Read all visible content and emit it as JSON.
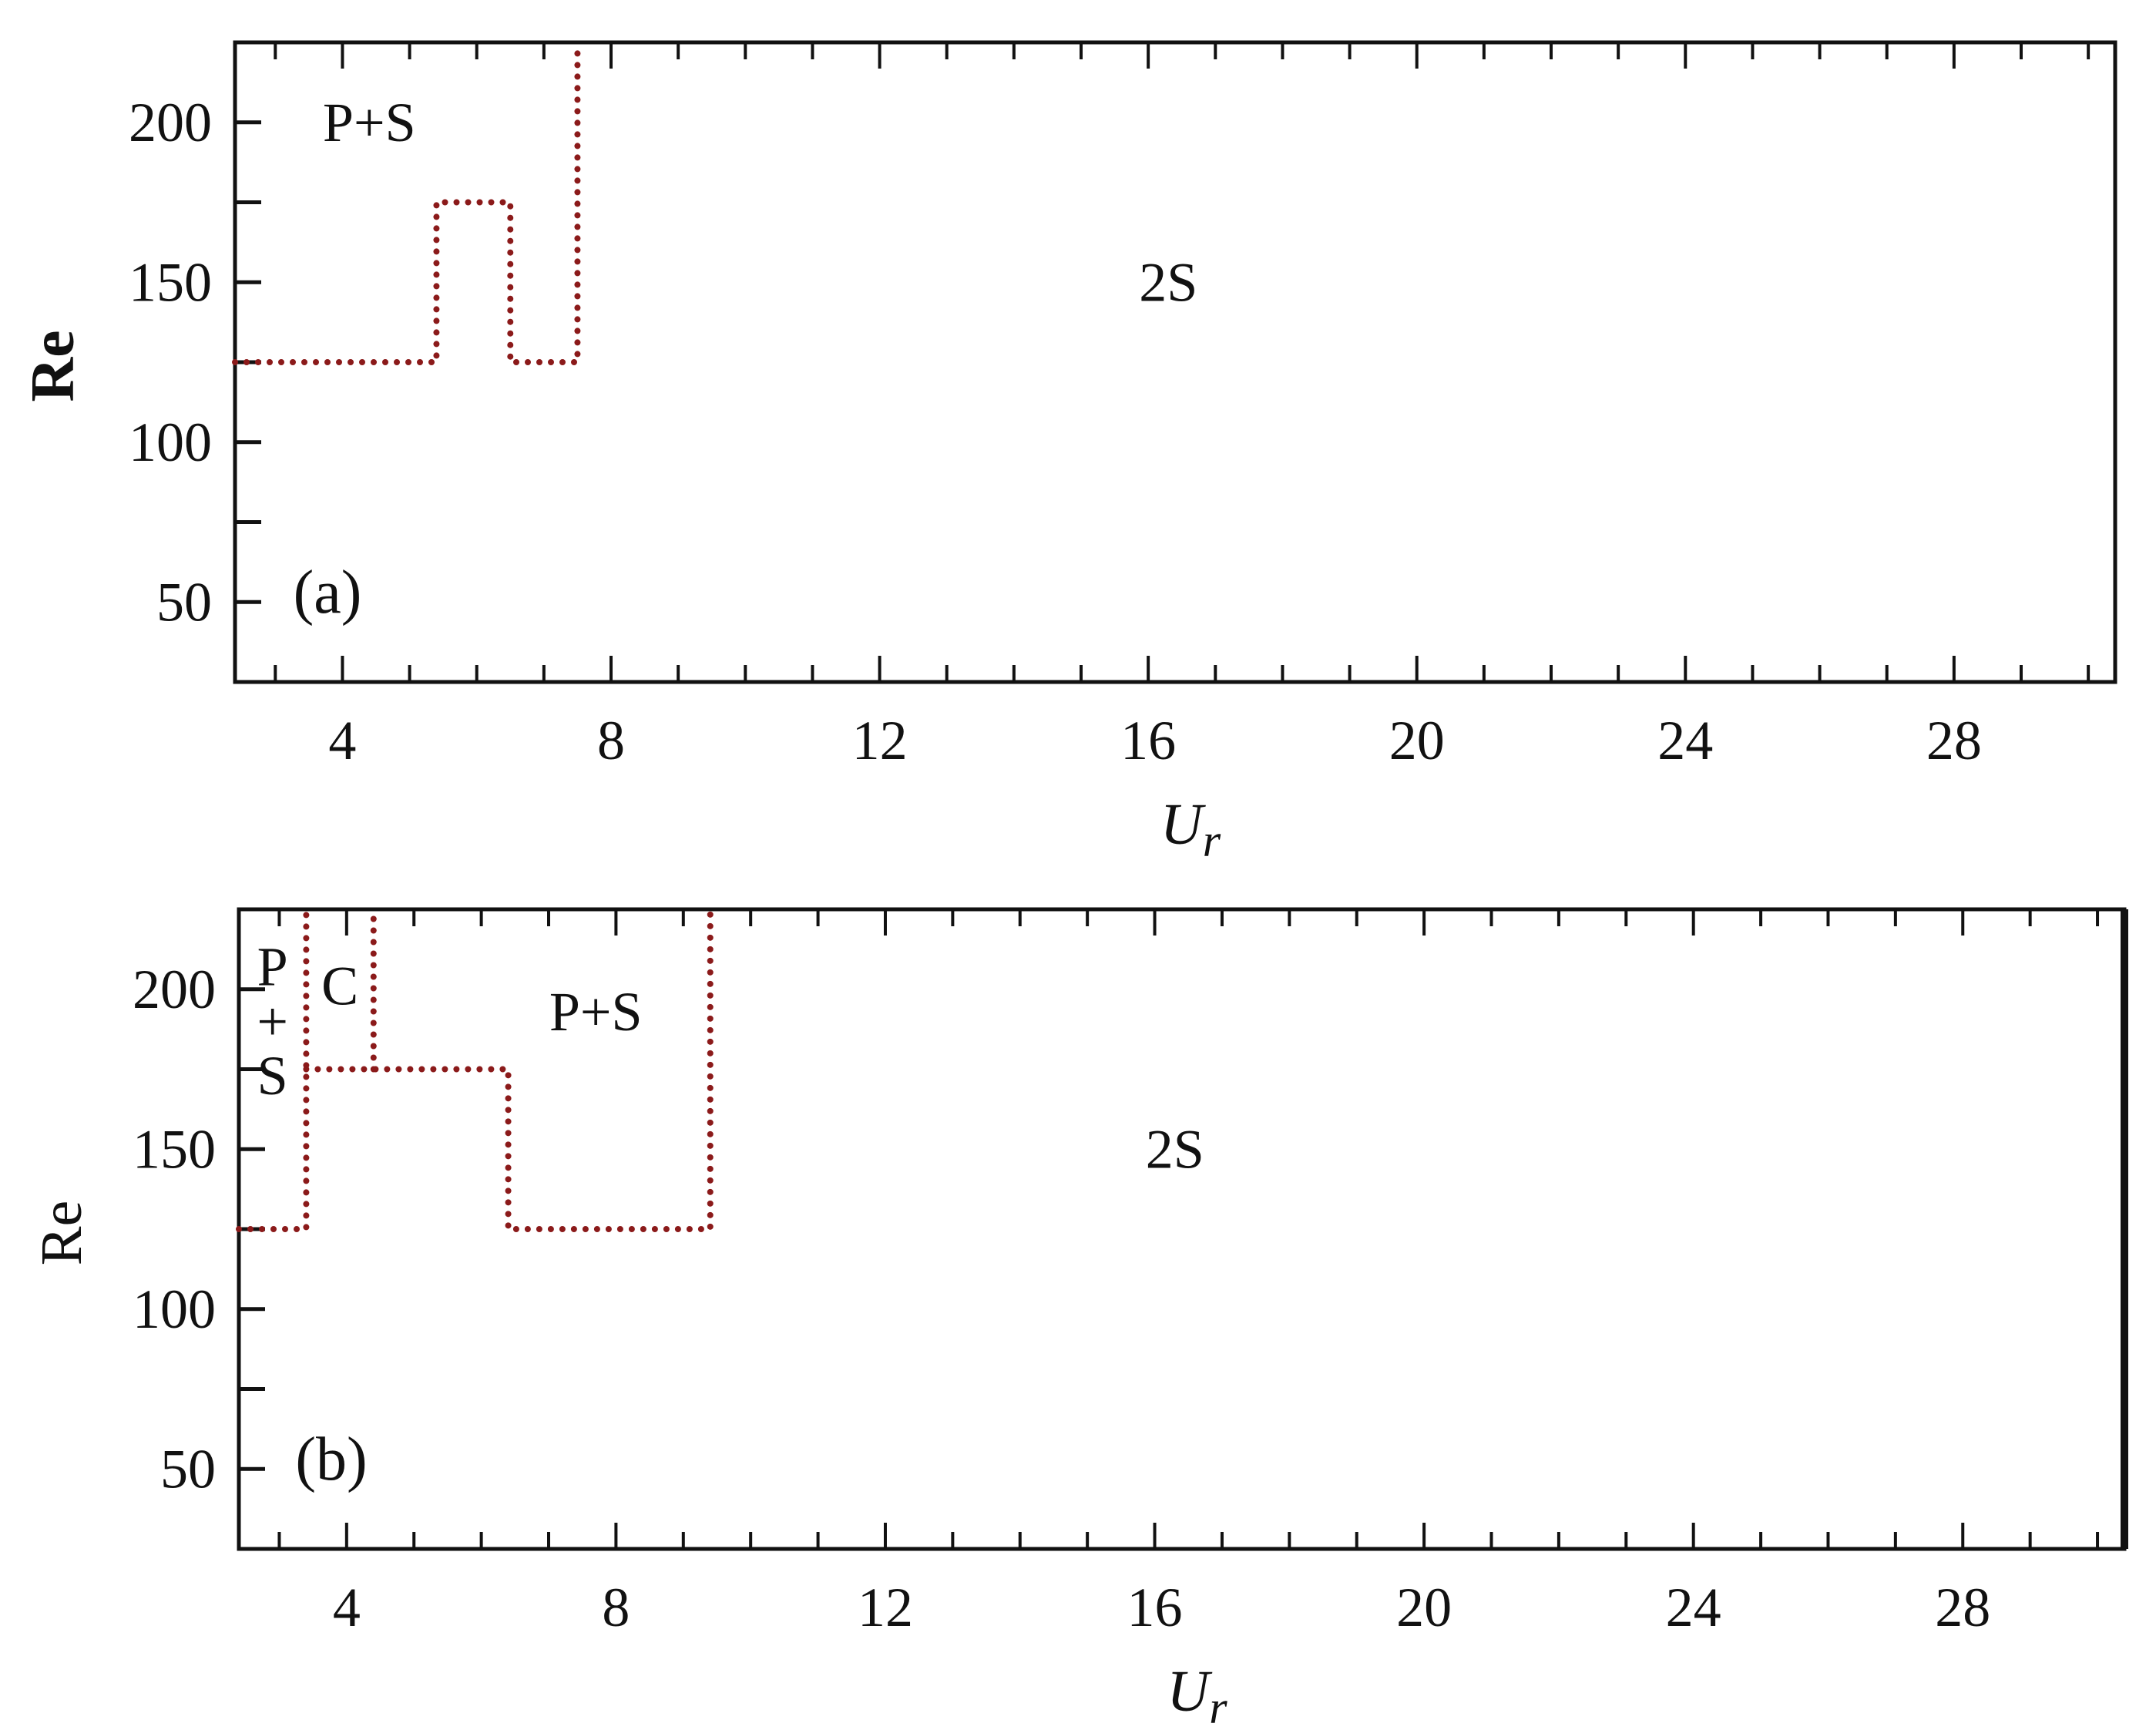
{
  "chart_data": [
    {
      "type": "line",
      "panel_label": "(a)",
      "xlabel_main": "U",
      "xlabel_sub": "r",
      "ylabel": "Re",
      "xlim": [
        2.4,
        30.4
      ],
      "ylim": [
        25,
        225
      ],
      "xticks": [
        "4",
        "8",
        "12",
        "16",
        "20",
        "24",
        "28"
      ],
      "yticks": [
        "50",
        "100",
        "150",
        "200"
      ],
      "xtick_values": [
        4,
        8,
        12,
        16,
        20,
        24,
        28
      ],
      "ytick_values": [
        50,
        100,
        150,
        200
      ],
      "x_minor_step": 1,
      "y_major_marks": [
        50,
        75,
        100,
        125,
        150,
        175,
        200,
        225
      ],
      "grid": false,
      "line_color": "#8b1a1a",
      "series": [
        {
          "style": "dotted",
          "x": [
            2.4,
            5.4,
            5.4,
            6.5,
            6.5,
            7.5,
            7.5
          ],
          "y": [
            125,
            125,
            175,
            175,
            125,
            125,
            225
          ]
        }
      ],
      "annotations": [
        {
          "text": "P+S",
          "x": 4.4,
          "y": 200
        },
        {
          "text": "2S",
          "x": 16.3,
          "y": 150
        }
      ]
    },
    {
      "type": "line",
      "panel_label": "(b)",
      "xlabel_main": "U",
      "xlabel_sub": "r",
      "ylabel": "Re",
      "xlim": [
        2.4,
        30.4
      ],
      "ylim": [
        25,
        225
      ],
      "xticks": [
        "4",
        "8",
        "12",
        "16",
        "20",
        "24",
        "28"
      ],
      "yticks": [
        "50",
        "100",
        "150",
        "200"
      ],
      "xtick_values": [
        4,
        8,
        12,
        16,
        20,
        24,
        28
      ],
      "ytick_values": [
        50,
        100,
        150,
        200
      ],
      "x_minor_step": 1,
      "y_major_marks": [
        50,
        75,
        100,
        125,
        150,
        175,
        200,
        225
      ],
      "grid": false,
      "line_color": "#8b1a1a",
      "series": [
        {
          "style": "dotted",
          "x": [
            2.4,
            3.4,
            3.4
          ],
          "y": [
            125,
            125,
            225
          ]
        },
        {
          "style": "dotted",
          "x": [
            3.4,
            6.4,
            6.4,
            9.4,
            9.4
          ],
          "y": [
            175,
            175,
            125,
            125,
            225
          ]
        },
        {
          "style": "dotted",
          "x": [
            4.4,
            4.4
          ],
          "y": [
            175,
            225
          ]
        }
      ],
      "annotations": [
        {
          "text": "P",
          "x": 2.9,
          "y": 207
        },
        {
          "text": "+",
          "x": 2.9,
          "y": 190
        },
        {
          "text": "S",
          "x": 2.9,
          "y": 173
        },
        {
          "text": "C",
          "x": 3.9,
          "y": 201
        },
        {
          "text": "P+S",
          "x": 7.7,
          "y": 193
        },
        {
          "text": "2S",
          "x": 16.3,
          "y": 150
        }
      ]
    }
  ]
}
